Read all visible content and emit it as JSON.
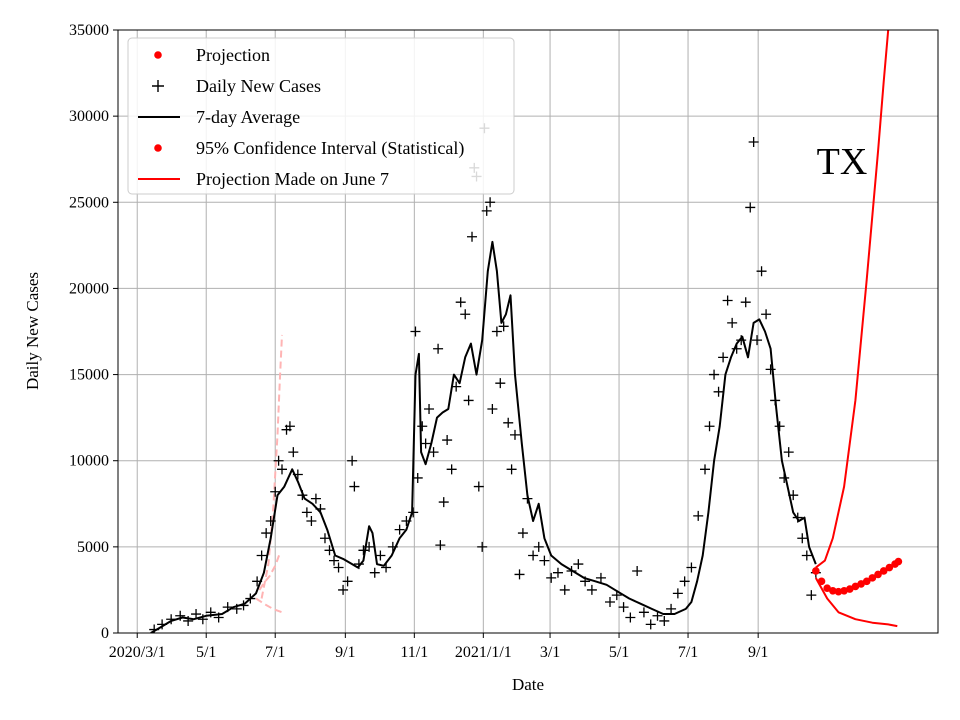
{
  "chart_data": {
    "type": "line",
    "title": "",
    "annotation": "TX",
    "xlabel": "Date",
    "ylabel": "Daily New Cases",
    "x_ticks": [
      {
        "label": "2020/3/1",
        "day": 0
      },
      {
        "label": "5/1",
        "day": 61
      },
      {
        "label": "7/1",
        "day": 122
      },
      {
        "label": "9/1",
        "day": 184
      },
      {
        "label": "11/1",
        "day": 245
      },
      {
        "label": "2021/1/1",
        "day": 306
      },
      {
        "label": "3/1",
        "day": 365
      },
      {
        "label": "5/1",
        "day": 426
      },
      {
        "label": "7/1",
        "day": 487
      },
      {
        "label": "9/1",
        "day": 549
      }
    ],
    "x_range_days": [
      -17,
      708
    ],
    "ylim": [
      0,
      35000
    ],
    "y_ticks": [
      "0",
      "5000",
      "10000",
      "15000",
      "20000",
      "25000",
      "30000",
      "35000"
    ],
    "grid": true,
    "legend_position": "top-left",
    "legend": [
      {
        "label": "Projection",
        "marker": "dot",
        "color": "#ff0000"
      },
      {
        "label": "Daily New Cases",
        "marker": "plus",
        "color": "#000000"
      },
      {
        "label": "7-day Average",
        "marker": "line",
        "color": "#000000"
      },
      {
        "label": "95% Confidence Interval (Statistical)",
        "marker": "dot",
        "color": "#ff0000"
      },
      {
        "label": "Projection Made on June 7",
        "marker": "line",
        "color": "#ff0000"
      }
    ],
    "series": [
      {
        "name": "7-day Average",
        "color": "#000000",
        "points": [
          [
            12,
            0
          ],
          [
            20,
            300
          ],
          [
            30,
            700
          ],
          [
            40,
            900
          ],
          [
            50,
            800
          ],
          [
            61,
            1000
          ],
          [
            75,
            1100
          ],
          [
            85,
            1500
          ],
          [
            95,
            1700
          ],
          [
            105,
            2300
          ],
          [
            112,
            3500
          ],
          [
            118,
            5500
          ],
          [
            124,
            8000
          ],
          [
            130,
            8500
          ],
          [
            137,
            9500
          ],
          [
            142,
            8800
          ],
          [
            148,
            7800
          ],
          [
            155,
            7500
          ],
          [
            162,
            7000
          ],
          [
            168,
            6000
          ],
          [
            175,
            4500
          ],
          [
            182,
            4300
          ],
          [
            190,
            4000
          ],
          [
            195,
            3800
          ],
          [
            200,
            4200
          ],
          [
            205,
            6200
          ],
          [
            208,
            5800
          ],
          [
            212,
            4000
          ],
          [
            218,
            3900
          ],
          [
            225,
            4500
          ],
          [
            232,
            5500
          ],
          [
            238,
            6000
          ],
          [
            243,
            7000
          ],
          [
            246,
            15000
          ],
          [
            249,
            16200
          ],
          [
            251,
            10500
          ],
          [
            255,
            9800
          ],
          [
            260,
            11000
          ],
          [
            265,
            12500
          ],
          [
            270,
            12800
          ],
          [
            275,
            13000
          ],
          [
            280,
            15000
          ],
          [
            285,
            14500
          ],
          [
            290,
            16000
          ],
          [
            295,
            16800
          ],
          [
            300,
            15000
          ],
          [
            305,
            17000
          ],
          [
            310,
            21000
          ],
          [
            314,
            22700
          ],
          [
            318,
            21000
          ],
          [
            322,
            18000
          ],
          [
            326,
            18500
          ],
          [
            330,
            19600
          ],
          [
            334,
            15000
          ],
          [
            340,
            11000
          ],
          [
            345,
            8000
          ],
          [
            350,
            6500
          ],
          [
            355,
            7500
          ],
          [
            360,
            5500
          ],
          [
            366,
            4500
          ],
          [
            375,
            4000
          ],
          [
            385,
            3600
          ],
          [
            395,
            3200
          ],
          [
            405,
            3000
          ],
          [
            415,
            2800
          ],
          [
            425,
            2400
          ],
          [
            435,
            2000
          ],
          [
            445,
            1700
          ],
          [
            455,
            1400
          ],
          [
            465,
            1100
          ],
          [
            475,
            1100
          ],
          [
            485,
            1400
          ],
          [
            490,
            1800
          ],
          [
            495,
            3000
          ],
          [
            500,
            4500
          ],
          [
            505,
            7000
          ],
          [
            510,
            10000
          ],
          [
            515,
            12000
          ],
          [
            520,
            15000
          ],
          [
            525,
            16000
          ],
          [
            530,
            16800
          ],
          [
            535,
            17200
          ],
          [
            540,
            16000
          ],
          [
            545,
            18000
          ],
          [
            550,
            18200
          ],
          [
            555,
            17500
          ],
          [
            560,
            16500
          ],
          [
            565,
            13000
          ],
          [
            570,
            10000
          ],
          [
            575,
            8500
          ],
          [
            580,
            7000
          ],
          [
            585,
            6500
          ],
          [
            590,
            6700
          ],
          [
            594,
            5000
          ],
          [
            600,
            4000
          ]
        ]
      },
      {
        "name": "Daily New Cases",
        "color": "#000000",
        "points": [
          [
            15,
            200
          ],
          [
            22,
            500
          ],
          [
            30,
            800
          ],
          [
            38,
            1000
          ],
          [
            45,
            700
          ],
          [
            52,
            1100
          ],
          [
            58,
            800
          ],
          [
            65,
            1200
          ],
          [
            72,
            900
          ],
          [
            80,
            1500
          ],
          [
            88,
            1400
          ],
          [
            94,
            1600
          ],
          [
            100,
            2000
          ],
          [
            106,
            3000
          ],
          [
            110,
            4500
          ],
          [
            114,
            5800
          ],
          [
            118,
            6500
          ],
          [
            122,
            8200
          ],
          [
            125,
            10000
          ],
          [
            128,
            9500
          ],
          [
            132,
            11800
          ],
          [
            135,
            12000
          ],
          [
            138,
            10500
          ],
          [
            142,
            9200
          ],
          [
            146,
            8000
          ],
          [
            150,
            7000
          ],
          [
            154,
            6500
          ],
          [
            158,
            7800
          ],
          [
            162,
            7200
          ],
          [
            166,
            5500
          ],
          [
            170,
            4800
          ],
          [
            174,
            4200
          ],
          [
            178,
            3800
          ],
          [
            182,
            2500
          ],
          [
            186,
            3000
          ],
          [
            190,
            10000
          ],
          [
            192,
            8500
          ],
          [
            196,
            4000
          ],
          [
            200,
            4800
          ],
          [
            205,
            5000
          ],
          [
            210,
            3500
          ],
          [
            215,
            4500
          ],
          [
            220,
            3800
          ],
          [
            226,
            5000
          ],
          [
            232,
            6000
          ],
          [
            238,
            6500
          ],
          [
            244,
            7000
          ],
          [
            246,
            17500
          ],
          [
            248,
            9000
          ],
          [
            252,
            12000
          ],
          [
            255,
            11000
          ],
          [
            258,
            13000
          ],
          [
            262,
            10500
          ],
          [
            266,
            16500
          ],
          [
            268,
            5100
          ],
          [
            271,
            7600
          ],
          [
            274,
            11200
          ],
          [
            278,
            9500
          ],
          [
            282,
            14300
          ],
          [
            286,
            19200
          ],
          [
            290,
            18500
          ],
          [
            293,
            13500
          ],
          [
            296,
            23000
          ],
          [
            298,
            27000
          ],
          [
            300,
            26500
          ],
          [
            302,
            8500
          ],
          [
            305,
            5000
          ],
          [
            307,
            29300
          ],
          [
            309,
            24500
          ],
          [
            312,
            25000
          ],
          [
            314,
            13000
          ],
          [
            318,
            17500
          ],
          [
            321,
            14500
          ],
          [
            324,
            17800
          ],
          [
            328,
            12200
          ],
          [
            331,
            9500
          ],
          [
            334,
            11500
          ],
          [
            338,
            3400
          ],
          [
            341,
            5800
          ],
          [
            345,
            7800
          ],
          [
            350,
            4500
          ],
          [
            355,
            5000
          ],
          [
            360,
            4200
          ],
          [
            366,
            3200
          ],
          [
            372,
            3500
          ],
          [
            378,
            2500
          ],
          [
            384,
            3600
          ],
          [
            390,
            4000
          ],
          [
            396,
            3000
          ],
          [
            402,
            2500
          ],
          [
            410,
            3200
          ],
          [
            418,
            1800
          ],
          [
            424,
            2200
          ],
          [
            430,
            1500
          ],
          [
            436,
            900
          ],
          [
            442,
            3600
          ],
          [
            448,
            1200
          ],
          [
            454,
            500
          ],
          [
            460,
            1000
          ],
          [
            466,
            700
          ],
          [
            472,
            1400
          ],
          [
            478,
            2300
          ],
          [
            484,
            3000
          ],
          [
            490,
            3800
          ],
          [
            496,
            6800
          ],
          [
            502,
            9500
          ],
          [
            506,
            12000
          ],
          [
            510,
            15000
          ],
          [
            514,
            14000
          ],
          [
            518,
            16000
          ],
          [
            522,
            19300
          ],
          [
            526,
            18000
          ],
          [
            530,
            16500
          ],
          [
            534,
            17000
          ],
          [
            538,
            19200
          ],
          [
            542,
            24700
          ],
          [
            545,
            28500
          ],
          [
            548,
            17000
          ],
          [
            552,
            21000
          ],
          [
            556,
            18500
          ],
          [
            560,
            15300
          ],
          [
            564,
            13500
          ],
          [
            568,
            12000
          ],
          [
            572,
            9000
          ],
          [
            576,
            10500
          ],
          [
            580,
            8000
          ],
          [
            584,
            6700
          ],
          [
            588,
            5500
          ],
          [
            592,
            4500
          ],
          [
            596,
            2200
          ],
          [
            600,
            3500
          ]
        ]
      },
      {
        "name": "Projection Made on June 7",
        "color": "#ff0000",
        "points": [
          [
            600,
            3800
          ],
          [
            608,
            4200
          ],
          [
            615,
            5500
          ],
          [
            625,
            8500
          ],
          [
            635,
            13500
          ],
          [
            645,
            20500
          ],
          [
            655,
            28000
          ],
          [
            660,
            32000
          ],
          [
            664,
            35000
          ]
        ]
      },
      {
        "name": "Projection Made on June 7 (lower)",
        "color": "#ff0000",
        "points": [
          [
            600,
            3200
          ],
          [
            610,
            2000
          ],
          [
            620,
            1200
          ],
          [
            635,
            800
          ],
          [
            650,
            600
          ],
          [
            664,
            500
          ],
          [
            672,
            400
          ]
        ]
      },
      {
        "name": "Projection",
        "color": "#ff0000",
        "marker": "dot",
        "points": [
          [
            600,
            3600
          ],
          [
            605,
            3000
          ],
          [
            610,
            2600
          ],
          [
            615,
            2450
          ],
          [
            620,
            2400
          ],
          [
            625,
            2450
          ],
          [
            630,
            2550
          ],
          [
            635,
            2700
          ],
          [
            640,
            2850
          ],
          [
            645,
            3000
          ],
          [
            650,
            3200
          ],
          [
            655,
            3400
          ],
          [
            660,
            3600
          ],
          [
            665,
            3800
          ],
          [
            670,
            4000
          ],
          [
            673,
            4150
          ]
        ]
      },
      {
        "name": "Early projection (upper)",
        "color": "#ffb4b4",
        "dashed": true,
        "points": [
          [
            110,
            2000
          ],
          [
            116,
            4000
          ],
          [
            120,
            7000
          ],
          [
            124,
            11500
          ],
          [
            126,
            14500
          ],
          [
            128,
            17300
          ]
        ]
      },
      {
        "name": "Early projection (lower)",
        "color": "#ffb4b4",
        "dashed": true,
        "points": [
          [
            108,
            2500
          ],
          [
            112,
            2900
          ],
          [
            117,
            3300
          ],
          [
            122,
            3900
          ],
          [
            126,
            4600
          ]
        ]
      },
      {
        "name": "Early projection (floor)",
        "color": "#ffb4b4",
        "dashed": true,
        "points": [
          [
            105,
            2000
          ],
          [
            112,
            1700
          ],
          [
            120,
            1400
          ],
          [
            128,
            1200
          ]
        ]
      }
    ]
  }
}
